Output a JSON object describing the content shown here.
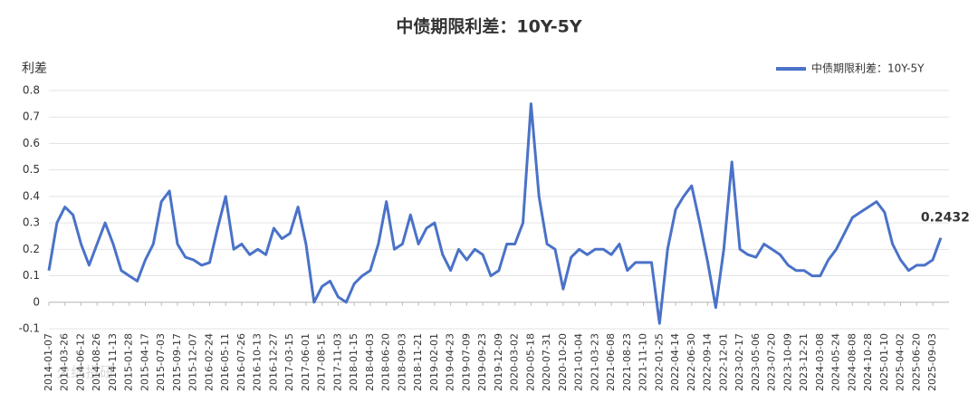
{
  "chart_data": {
    "type": "line",
    "title": "中债期限利差：10Y-5Y",
    "y_label": "利差",
    "watermark": "火线投研",
    "categories": [
      "2014-01-07",
      null,
      "2014-03-26",
      null,
      "2014-06-12",
      null,
      "2014-08-26",
      null,
      "2014-11-13",
      null,
      "2015-01-28",
      null,
      "2015-04-17",
      null,
      "2015-07-03",
      null,
      "2015-09-17",
      null,
      "2015-12-07",
      null,
      "2016-02-24",
      null,
      "2016-05-11",
      null,
      "2016-07-26",
      null,
      "2016-10-13",
      null,
      "2016-12-27",
      null,
      "2017-03-15",
      null,
      "2017-06-01",
      null,
      "2017-08-15",
      null,
      "2017-11-03",
      null,
      "2018-01-15",
      null,
      "2018-04-03",
      null,
      "2018-06-20",
      null,
      "2018-09-03",
      null,
      "2018-11-21",
      null,
      "2019-02-01",
      null,
      "2019-04-23",
      null,
      "2019-07-09",
      null,
      "2019-09-23",
      null,
      "2019-12-09",
      null,
      "2020-03-02",
      null,
      "2020-05-18",
      null,
      "2020-07-31",
      null,
      "2020-10-20",
      null,
      "2021-01-04",
      null,
      "2021-03-23",
      null,
      "2021-06-08",
      null,
      "2021-08-23",
      null,
      "2021-11-10",
      null,
      "2022-01-25",
      null,
      "2022-04-14",
      null,
      "2022-06-30",
      null,
      "2022-09-14",
      null,
      "2022-12-01",
      null,
      "2023-02-17",
      null,
      "2023-05-06",
      null,
      "2023-07-20",
      null,
      "2023-10-09",
      null,
      "2023-12-21",
      null,
      "2024-03-08",
      null,
      "2024-05-24",
      null,
      "2024-08-08",
      null,
      "2024-10-28",
      null,
      "2025-01-10",
      null,
      "2025-04-02",
      null,
      "2025-06-20",
      null,
      "2025-09-03",
      null
    ],
    "series": [
      {
        "name": "中债期限利差：10Y-5Y",
        "color": "#4a72c8",
        "values": [
          0.12,
          0.3,
          0.36,
          0.33,
          0.22,
          0.14,
          0.22,
          0.3,
          0.22,
          0.12,
          0.1,
          0.08,
          0.16,
          0.22,
          0.38,
          0.42,
          0.22,
          0.17,
          0.16,
          0.14,
          0.15,
          0.28,
          0.4,
          0.2,
          0.22,
          0.18,
          0.2,
          0.18,
          0.28,
          0.24,
          0.26,
          0.36,
          0.22,
          0.0,
          0.06,
          0.08,
          0.02,
          0.0,
          0.07,
          0.1,
          0.12,
          0.22,
          0.38,
          0.2,
          0.22,
          0.33,
          0.22,
          0.28,
          0.3,
          0.18,
          0.12,
          0.2,
          0.16,
          0.2,
          0.18,
          0.1,
          0.12,
          0.22,
          0.22,
          0.3,
          0.75,
          0.4,
          0.22,
          0.2,
          0.05,
          0.17,
          0.2,
          0.18,
          0.2,
          0.2,
          0.18,
          0.22,
          0.12,
          0.15,
          0.15,
          0.15,
          -0.08,
          0.2,
          0.35,
          0.4,
          0.44,
          0.3,
          0.15,
          -0.02,
          0.2,
          0.53,
          0.2,
          0.18,
          0.17,
          0.22,
          0.2,
          0.18,
          0.14,
          0.12,
          0.12,
          0.1,
          0.1,
          0.16,
          0.2,
          0.26,
          0.32,
          0.34,
          0.36,
          0.38,
          0.34,
          0.22,
          0.16,
          0.12,
          0.14,
          0.14,
          0.16,
          0.2432
        ]
      }
    ],
    "last_value_label": true,
    "ylim": [
      -0.1,
      0.8
    ],
    "yticks": [
      -0.1,
      0,
      0.1,
      0.2,
      0.3,
      0.4,
      0.5,
      0.6,
      0.7,
      0.8
    ],
    "grid": true,
    "legend": "top-right"
  }
}
